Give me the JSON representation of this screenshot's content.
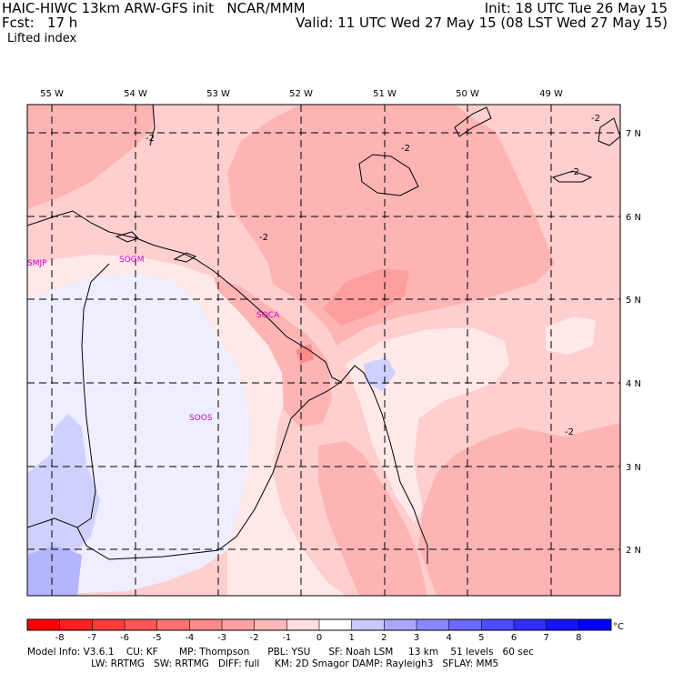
{
  "header": {
    "line1_left": "HAIC-HIWC 13km ARW-GFS init   NCAR/MMM",
    "line2_left": "Fcst:   17 h",
    "line3_left": "Lifted index",
    "line1_right": "Init: 18 UTC Tue 26 May 15",
    "line2_right": "Valid: 11 UTC Wed 27 May 15 (08 LST Wed 27 May 15)"
  },
  "map": {
    "lon_labels": [
      "55 W",
      "54 W",
      "53 W",
      "52 W",
      "51 W",
      "50 W",
      "49 W"
    ],
    "lat_labels": [
      "7 N",
      "6 N",
      "5 N",
      "4 N",
      "3 N",
      "2 N"
    ],
    "stations": [
      "SMJP",
      "SOGM",
      "SOCA",
      "SOOS"
    ],
    "contour_labels": [
      "-2",
      "-2",
      "-2",
      "-2",
      "-2",
      "-2"
    ],
    "colors": {
      "li_neg5": "#ff8a8a",
      "li_neg4": "#ff9e9e",
      "li_neg3": "#ffb4b4",
      "li_neg2": "#ffcece",
      "li_neg1": "#ffe8e8",
      "li_0": "#eeeeff",
      "li_1": "#d0d0ff",
      "li_2": "#b4b4ff",
      "station_text": "#cc00cc",
      "coast": "#000000"
    }
  },
  "colorbar": {
    "labels": [
      "-8",
      "-7",
      "-6",
      "-5",
      "-4",
      "-3",
      "-2",
      "-1",
      "0",
      "1",
      "2",
      "3",
      "4",
      "5",
      "6",
      "7",
      "8"
    ],
    "unit": "°C",
    "colors": [
      "#ff0000",
      "#ff2020",
      "#ff3c3c",
      "#ff5656",
      "#ff7272",
      "#ff8a8a",
      "#ffa0a0",
      "#ffb8b8",
      "#ffdede",
      "#ffffff",
      "#c8c8ff",
      "#a8a8ff",
      "#8888ff",
      "#6a6aff",
      "#4c4cff",
      "#2e2eff",
      "#1414ff",
      "#0000ff"
    ]
  },
  "footer": {
    "line1": "Model Info: V3.6.1    CU: KF       MP: Thompson      PBL: YSU      SF: Noah LSM     13 km    51 levels   60 sec",
    "line2": "                     LW: RRTMG   SW: RRTMG   DIFF: full     KM: 2D Smagor DAMP: Rayleigh3   SFLAY: MM5"
  }
}
